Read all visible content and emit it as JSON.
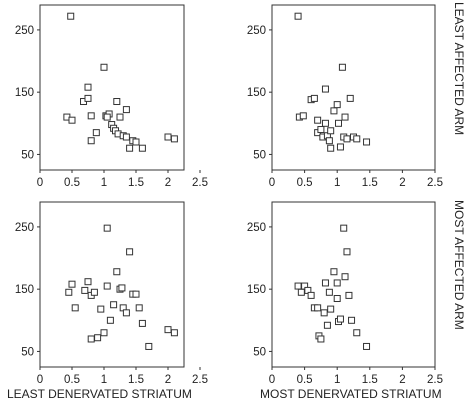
{
  "chart_data": [
    {
      "type": "scatter",
      "panel": "top-left",
      "xlim": [
        0,
        2.5
      ],
      "ylim": [
        25,
        290
      ],
      "xticks": [
        "0",
        "0.5",
        "1",
        "1.5",
        "2",
        "2.5"
      ],
      "yticks": [
        "50",
        "150",
        "250"
      ],
      "points": [
        [
          0.48,
          272
        ],
        [
          0.42,
          110
        ],
        [
          0.5,
          105
        ],
        [
          0.68,
          135
        ],
        [
          0.75,
          158
        ],
        [
          0.75,
          140
        ],
        [
          0.8,
          112
        ],
        [
          0.8,
          72
        ],
        [
          0.88,
          85
        ],
        [
          1.0,
          190
        ],
        [
          1.03,
          112
        ],
        [
          1.08,
          115
        ],
        [
          1.12,
          98
        ],
        [
          1.15,
          92
        ],
        [
          1.18,
          88
        ],
        [
          1.2,
          135
        ],
        [
          1.22,
          83
        ],
        [
          1.25,
          110
        ],
        [
          1.3,
          80
        ],
        [
          1.35,
          122
        ],
        [
          1.35,
          78
        ],
        [
          1.4,
          60
        ],
        [
          1.45,
          72
        ],
        [
          1.5,
          70
        ],
        [
          1.6,
          60
        ],
        [
          2.0,
          78
        ],
        [
          2.1,
          75
        ],
        [
          1.05,
          110
        ]
      ]
    },
    {
      "type": "scatter",
      "panel": "top-right",
      "xlim": [
        0,
        2.5
      ],
      "ylim": [
        25,
        290
      ],
      "xticks": [
        "0",
        "0.5",
        "1",
        "1.5",
        "2",
        "2.5"
      ],
      "yticks": [
        "50",
        "150",
        "250"
      ],
      "points": [
        [
          0.4,
          272
        ],
        [
          0.42,
          110
        ],
        [
          0.48,
          112
        ],
        [
          0.6,
          138
        ],
        [
          0.65,
          140
        ],
        [
          0.7,
          85
        ],
        [
          0.7,
          105
        ],
        [
          0.75,
          90
        ],
        [
          0.78,
          78
        ],
        [
          0.82,
          155
        ],
        [
          0.82,
          100
        ],
        [
          0.85,
          80
        ],
        [
          0.88,
          72
        ],
        [
          0.9,
          88
        ],
        [
          0.95,
          120
        ],
        [
          1.0,
          130
        ],
        [
          1.02,
          100
        ],
        [
          1.05,
          62
        ],
        [
          1.08,
          190
        ],
        [
          1.1,
          78
        ],
        [
          1.12,
          110
        ],
        [
          1.15,
          75
        ],
        [
          1.2,
          140
        ],
        [
          1.25,
          78
        ],
        [
          1.3,
          75
        ],
        [
          1.45,
          70
        ],
        [
          0.9,
          60
        ]
      ]
    },
    {
      "type": "scatter",
      "panel": "bottom-left",
      "xlim": [
        0,
        2.5
      ],
      "ylim": [
        25,
        290
      ],
      "xticks": [
        "0",
        "0.5",
        "1",
        "1.5",
        "2",
        "2.5"
      ],
      "yticks": [
        "50",
        "150",
        "250"
      ],
      "points": [
        [
          0.45,
          145
        ],
        [
          0.5,
          158
        ],
        [
          0.55,
          120
        ],
        [
          0.7,
          148
        ],
        [
          0.75,
          162
        ],
        [
          0.8,
          140
        ],
        [
          0.8,
          70
        ],
        [
          0.85,
          145
        ],
        [
          0.9,
          72
        ],
        [
          0.95,
          118
        ],
        [
          1.0,
          80
        ],
        [
          1.05,
          248
        ],
        [
          1.05,
          155
        ],
        [
          1.1,
          100
        ],
        [
          1.15,
          125
        ],
        [
          1.2,
          178
        ],
        [
          1.25,
          150
        ],
        [
          1.28,
          152
        ],
        [
          1.3,
          120
        ],
        [
          1.35,
          112
        ],
        [
          1.4,
          210
        ],
        [
          1.45,
          142
        ],
        [
          1.5,
          142
        ],
        [
          1.55,
          120
        ],
        [
          1.6,
          95
        ],
        [
          1.7,
          58
        ],
        [
          2.0,
          85
        ],
        [
          2.1,
          80
        ]
      ]
    },
    {
      "type": "scatter",
      "panel": "bottom-right",
      "xlim": [
        0,
        2.5
      ],
      "ylim": [
        25,
        290
      ],
      "xticks": [
        "0",
        "0.5",
        "1",
        "1.5",
        "2",
        "2.5"
      ],
      "yticks": [
        "50",
        "150",
        "250"
      ],
      "points": [
        [
          0.4,
          155
        ],
        [
          0.45,
          145
        ],
        [
          0.5,
          155
        ],
        [
          0.55,
          148
        ],
        [
          0.6,
          140
        ],
        [
          0.65,
          120
        ],
        [
          0.7,
          120
        ],
        [
          0.72,
          75
        ],
        [
          0.75,
          70
        ],
        [
          0.8,
          112
        ],
        [
          0.82,
          160
        ],
        [
          0.85,
          92
        ],
        [
          0.88,
          145
        ],
        [
          0.9,
          118
        ],
        [
          0.95,
          178
        ],
        [
          1.0,
          135
        ],
        [
          1.02,
          98
        ],
        [
          1.05,
          102
        ],
        [
          1.1,
          248
        ],
        [
          1.12,
          170
        ],
        [
          1.15,
          210
        ],
        [
          1.18,
          140
        ],
        [
          1.22,
          100
        ],
        [
          1.3,
          80
        ],
        [
          1.45,
          58
        ],
        [
          1.0,
          160
        ]
      ]
    }
  ],
  "labels": {
    "x_left": "LEAST DENERVATED STRIATUM",
    "x_right": "MOST DENERVATED STRIATUM",
    "row_top": "LEAST AFFECTED ARM",
    "row_bottom": "MOST AFFECTED ARM"
  }
}
